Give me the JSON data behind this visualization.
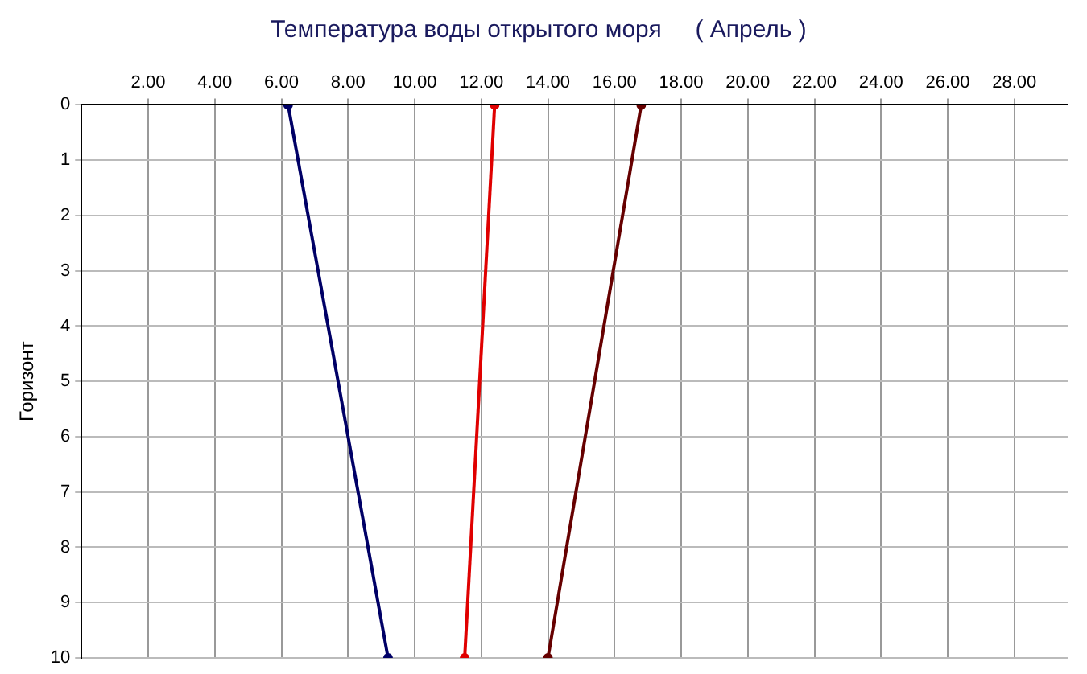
{
  "chart_data": {
    "type": "line",
    "title": "Температура воды открытого моря     ( Апрель )",
    "ylabel": "Горизонт",
    "orientation": "horizontal",
    "x": [
      0,
      10
    ],
    "series": [
      {
        "color": "#000066",
        "values": [
          6.2,
          9.2
        ]
      },
      {
        "color": "#e00000",
        "values": [
          12.4,
          11.5
        ]
      },
      {
        "color": "#660000",
        "values": [
          16.8,
          14.0
        ]
      }
    ],
    "xlim": [
      0,
      29.6
    ],
    "xticks": [
      {
        "value": 2,
        "label": "2.00"
      },
      {
        "value": 4,
        "label": "4.00"
      },
      {
        "value": 6,
        "label": "6.00"
      },
      {
        "value": 8,
        "label": "8.00"
      },
      {
        "value": 10,
        "label": "10.00"
      },
      {
        "value": 12,
        "label": "12.00"
      },
      {
        "value": 14,
        "label": "14.00"
      },
      {
        "value": 16,
        "label": "16.00"
      },
      {
        "value": 18,
        "label": "18.00"
      },
      {
        "value": 20,
        "label": "20.00"
      },
      {
        "value": 22,
        "label": "22.00"
      },
      {
        "value": 24,
        "label": "24.00"
      },
      {
        "value": 26,
        "label": "26.00"
      },
      {
        "value": 28,
        "label": "28.00"
      }
    ],
    "ylim": [
      10,
      0
    ],
    "yticks": [
      0,
      1,
      2,
      3,
      4,
      5,
      6,
      7,
      8,
      9,
      10
    ],
    "grid": true,
    "legend": false,
    "marker": "circle",
    "line_style": "solid"
  }
}
